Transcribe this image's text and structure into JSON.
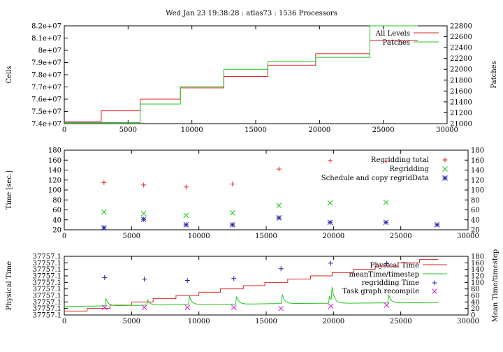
{
  "title": "Wed Jan 23 19:38:28 : atlas73 : 1536 Processors",
  "colors": {
    "red": "#d62728",
    "green": "#22c41c",
    "blue": "#1f1fa8",
    "magenta": "#cc22cc",
    "label_red": "#c0141e",
    "label_green": "#1fbf1f"
  },
  "chart_data": [
    {
      "type": "line",
      "name": "cells-patches",
      "xlim": [
        0,
        30000
      ],
      "xticks": [
        0,
        5000,
        10000,
        15000,
        20000,
        25000,
        30000
      ],
      "ylabel": "Cells",
      "ylim": [
        74000000,
        82000000
      ],
      "yticks": [
        {
          "value": 74000000,
          "label": "7.4e+07"
        },
        {
          "value": 75000000,
          "label": "7.5e+07"
        },
        {
          "value": 76000000,
          "label": "7.6e+07"
        },
        {
          "value": 77000000,
          "label": "7.7e+07"
        },
        {
          "value": 78000000,
          "label": "7.8e+07"
        },
        {
          "value": 79000000,
          "label": "7.9e+07"
        },
        {
          "value": 80000000,
          "label": "8e+07"
        },
        {
          "value": 81000000,
          "label": "8.1e+07"
        },
        {
          "value": 82000000,
          "label": "8.2e+07"
        }
      ],
      "y2label": "Patches",
      "y2lim": [
        21000,
        22800
      ],
      "y2ticks": [
        21000,
        21200,
        21400,
        21600,
        21800,
        22000,
        22200,
        22400,
        22600,
        22800
      ],
      "legend": "top-right",
      "series": [
        {
          "name": "All Levels",
          "axis": "y",
          "color": "red",
          "step": true,
          "x": [
            0,
            2900,
            5950,
            9100,
            12500,
            15950,
            19700,
            23950,
            27700
          ],
          "y": [
            74150000,
            75050000,
            76000000,
            76920000,
            77860000,
            78780000,
            79720000,
            80830000,
            80830000
          ]
        },
        {
          "name": "Patches",
          "axis": "y2",
          "color": "green",
          "step": true,
          "x": [
            0,
            5950,
            9100,
            12500,
            15950,
            19700,
            23950,
            27700
          ],
          "y": [
            21020,
            21360,
            21680,
            22000,
            22140,
            22220,
            22800,
            22800
          ]
        }
      ]
    },
    {
      "type": "scatter",
      "name": "regrid-time",
      "xlim": [
        0,
        30000
      ],
      "xticks": [
        0,
        5000,
        10000,
        15000,
        20000,
        25000,
        30000
      ],
      "ylabel": "Time [sec.]",
      "ylim": [
        20,
        180
      ],
      "yticks": [
        20,
        40,
        60,
        80,
        100,
        120,
        140,
        160,
        180
      ],
      "y2lim": [
        20,
        180
      ],
      "y2ticks": [
        20,
        40,
        60,
        80,
        100,
        120,
        140,
        160,
        180
      ],
      "legend": "top-right",
      "series": [
        {
          "name": "Regridding total",
          "marker": "plus",
          "color": "red",
          "x": [
            2950,
            5900,
            9050,
            12500,
            15950,
            19750,
            23900
          ],
          "y": [
            115,
            110,
            106,
            112,
            142,
            159,
            158
          ]
        },
        {
          "name": "Regridding",
          "marker": "cross",
          "color": "green",
          "x": [
            2950,
            5900,
            9050,
            12500,
            15950,
            19750,
            23900
          ],
          "y": [
            56,
            53,
            49,
            54,
            69,
            74,
            75
          ]
        },
        {
          "name": "Schedule and copy regridData",
          "marker": "star",
          "color": "blue",
          "x": [
            2950,
            5900,
            9050,
            12500,
            15950,
            19750,
            23900,
            27700
          ],
          "y": [
            24,
            41,
            30,
            30,
            44,
            35,
            35,
            30
          ]
        }
      ]
    },
    {
      "type": "line",
      "name": "physical-time",
      "xlim": [
        0,
        30000
      ],
      "xticks": [
        0,
        5000,
        10000,
        15000,
        20000,
        25000,
        30000
      ],
      "ylabel": "Physical Time",
      "ylim": [
        0,
        9
      ],
      "yticks": [
        {
          "value": 0,
          "label": "37757.1"
        },
        {
          "value": 1,
          "label": "37757.1"
        },
        {
          "value": 2,
          "label": "37757.1"
        },
        {
          "value": 3,
          "label": "37757.1"
        },
        {
          "value": 4,
          "label": "37757.1"
        },
        {
          "value": 5,
          "label": "37757.1"
        },
        {
          "value": 6,
          "label": "37757.1"
        },
        {
          "value": 7,
          "label": "37757.1"
        },
        {
          "value": 8,
          "label": "37757.1"
        },
        {
          "value": 9,
          "label": "37757.1"
        }
      ],
      "y2label": "Mean Time/timestep",
      "y2lim": [
        0,
        180
      ],
      "y2ticks": [
        0,
        20,
        40,
        60,
        80,
        100,
        120,
        140,
        160,
        180
      ],
      "legend": "top-right",
      "series": [
        {
          "name": "Physical Time",
          "axis": "y",
          "color": "red",
          "step": true,
          "x": [
            0,
            1700,
            3400,
            5000,
            6600,
            8300,
            10000,
            11600,
            13300,
            14900,
            16600,
            18300,
            19900,
            21500,
            23100,
            24800,
            26400,
            27800
          ],
          "y": [
            0.6,
            1.0,
            1.5,
            2.0,
            2.5,
            3.0,
            3.5,
            4.0,
            4.5,
            5.0,
            5.5,
            6.0,
            6.5,
            7.0,
            7.5,
            8.0,
            8.5,
            8.5
          ]
        },
        {
          "name": "meanTime/timestep",
          "axis": "y2",
          "color": "green",
          "step": false,
          "baseline": [
            [
              0,
              26
            ],
            [
              3000,
              28
            ],
            [
              6000,
              30
            ],
            [
              9000,
              32
            ],
            [
              12500,
              33
            ],
            [
              16000,
              35
            ],
            [
              19800,
              36
            ],
            [
              24000,
              37
            ],
            [
              27800,
              38
            ]
          ],
          "spikes": [
            [
              3100,
              50
            ],
            [
              6200,
              46
            ],
            [
              9300,
              58
            ],
            [
              12800,
              57
            ],
            [
              16200,
              63
            ],
            [
              19700,
              58
            ],
            [
              19900,
              78
            ],
            [
              21200,
              36
            ],
            [
              24100,
              62
            ]
          ],
          "x_end": 27800
        },
        {
          "name": "regridding Time",
          "axis": "y2",
          "marker": "plus",
          "color": "blue",
          "x": [
            3000,
            5950,
            9150,
            12600,
            16100,
            19800,
            23950
          ],
          "y": [
            115,
            110,
            106,
            112,
            142,
            159,
            158
          ]
        },
        {
          "name": "Task graph recompile",
          "axis": "y2",
          "marker": "cross",
          "color": "magenta",
          "x": [
            3000,
            5950,
            9150,
            12600,
            16100,
            19800,
            23950
          ],
          "y": [
            23,
            23,
            23,
            23,
            20,
            27,
            30
          ]
        }
      ]
    }
  ]
}
